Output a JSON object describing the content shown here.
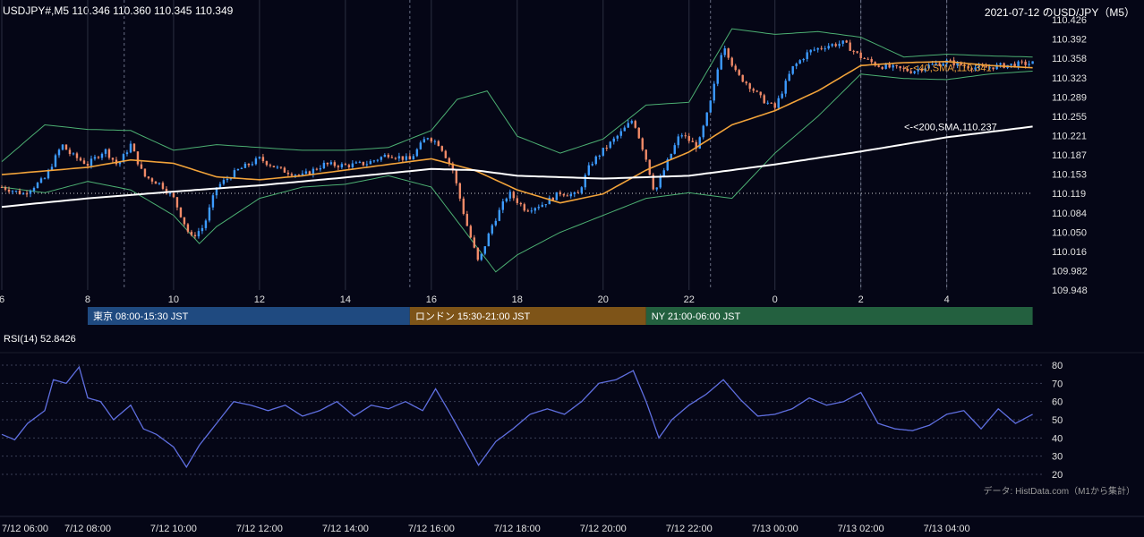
{
  "header": {
    "left": "USDJPY#,M5 110.346 110.360 110.345 110.349",
    "right": "2021-07-12 のUSD/JPY（M5）"
  },
  "rsi_label": "RSI(14) 52.8426",
  "source_note": "データ: HistData.com（M1から集計）",
  "colors": {
    "background": "#050616",
    "bull": "#3d9bff",
    "bear": "#f08a68",
    "sma40": "#f2a33a",
    "sma200": "#ffffff",
    "bollinger": "#4caf72",
    "rsi": "#5f6fe0",
    "grid": "#2b2f40",
    "tokyo": "#1f4a80",
    "london": "#7e5418",
    "ny": "#23603f"
  },
  "chart_data": [
    {
      "type": "candlestick",
      "symbol": "USDJPY#",
      "timeframe": "M5",
      "ohlc_last": {
        "open": 110.346,
        "high": 110.36,
        "low": 110.345,
        "close": 110.349
      },
      "ylim": [
        109.948,
        110.426
      ],
      "yticks": [
        "110.426",
        "110.392",
        "110.358",
        "110.323",
        "110.289",
        "110.255",
        "110.221",
        "110.187",
        "110.153",
        "110.119",
        "110.084",
        "110.050",
        "110.016",
        "109.982",
        "109.948"
      ],
      "xticks": [
        "6",
        "8",
        "10",
        "12",
        "14",
        "16",
        "18",
        "20",
        "22",
        "0",
        "2",
        "4"
      ],
      "xtick_hours": [
        6,
        8,
        10,
        12,
        14,
        16,
        18,
        20,
        22,
        24,
        26,
        28
      ],
      "xlim_hours": [
        6,
        30.3
      ],
      "reference_line": 110.119,
      "key_points": [
        {
          "t": 6.0,
          "p": 110.13
        },
        {
          "t": 6.5,
          "p": 110.118
        },
        {
          "t": 7.0,
          "p": 110.145
        },
        {
          "t": 7.4,
          "p": 110.205
        },
        {
          "t": 7.6,
          "p": 110.188
        },
        {
          "t": 8.0,
          "p": 110.17
        },
        {
          "t": 8.4,
          "p": 110.196
        },
        {
          "t": 8.7,
          "p": 110.168
        },
        {
          "t": 9.0,
          "p": 110.205
        },
        {
          "t": 9.3,
          "p": 110.15
        },
        {
          "t": 9.7,
          "p": 110.135
        },
        {
          "t": 10.0,
          "p": 110.11
        },
        {
          "t": 10.4,
          "p": 110.04
        },
        {
          "t": 10.7,
          "p": 110.06
        },
        {
          "t": 11.0,
          "p": 110.13
        },
        {
          "t": 11.5,
          "p": 110.16
        },
        {
          "t": 12.0,
          "p": 110.18
        },
        {
          "t": 12.5,
          "p": 110.16
        },
        {
          "t": 13.0,
          "p": 110.15
        },
        {
          "t": 13.5,
          "p": 110.17
        },
        {
          "t": 14.0,
          "p": 110.168
        },
        {
          "t": 14.5,
          "p": 110.172
        },
        {
          "t": 15.0,
          "p": 110.188
        },
        {
          "t": 15.5,
          "p": 110.178
        },
        {
          "t": 15.9,
          "p": 110.22
        },
        {
          "t": 16.2,
          "p": 110.205
        },
        {
          "t": 16.5,
          "p": 110.16
        },
        {
          "t": 16.8,
          "p": 110.07
        },
        {
          "t": 17.1,
          "p": 109.995
        },
        {
          "t": 17.4,
          "p": 110.06
        },
        {
          "t": 17.8,
          "p": 110.12
        },
        {
          "t": 18.2,
          "p": 110.09
        },
        {
          "t": 18.6,
          "p": 110.1
        },
        {
          "t": 19.0,
          "p": 110.12
        },
        {
          "t": 19.4,
          "p": 110.115
        },
        {
          "t": 19.7,
          "p": 110.17
        },
        {
          "t": 20.0,
          "p": 110.195
        },
        {
          "t": 20.4,
          "p": 110.225
        },
        {
          "t": 20.7,
          "p": 110.25
        },
        {
          "t": 21.0,
          "p": 110.18
        },
        {
          "t": 21.2,
          "p": 110.12
        },
        {
          "t": 21.5,
          "p": 110.175
        },
        {
          "t": 21.8,
          "p": 110.225
        },
        {
          "t": 22.2,
          "p": 110.2
        },
        {
          "t": 22.5,
          "p": 110.28
        },
        {
          "t": 22.8,
          "p": 110.385
        },
        {
          "t": 23.1,
          "p": 110.33
        },
        {
          "t": 23.4,
          "p": 110.31
        },
        {
          "t": 23.7,
          "p": 110.285
        },
        {
          "t": 24.0,
          "p": 110.27
        },
        {
          "t": 24.4,
          "p": 110.34
        },
        {
          "t": 24.8,
          "p": 110.37
        },
        {
          "t": 25.2,
          "p": 110.38
        },
        {
          "t": 25.6,
          "p": 110.385
        },
        {
          "t": 26.0,
          "p": 110.36
        },
        {
          "t": 26.4,
          "p": 110.345
        },
        {
          "t": 26.8,
          "p": 110.34
        },
        {
          "t": 27.2,
          "p": 110.335
        },
        {
          "t": 27.6,
          "p": 110.345
        },
        {
          "t": 28.0,
          "p": 110.352
        },
        {
          "t": 28.4,
          "p": 110.345
        },
        {
          "t": 28.8,
          "p": 110.34
        },
        {
          "t": 29.2,
          "p": 110.344
        },
        {
          "t": 29.6,
          "p": 110.347
        },
        {
          "t": 30.0,
          "p": 110.349
        }
      ],
      "sma": [
        {
          "name": "SMA(40)",
          "value_label": "<-<40,SMA,110.341",
          "last": 110.341,
          "points": [
            {
              "t": 6,
              "p": 110.152
            },
            {
              "t": 8,
              "p": 110.165
            },
            {
              "t": 9,
              "p": 110.178
            },
            {
              "t": 10,
              "p": 110.172
            },
            {
              "t": 11,
              "p": 110.148
            },
            {
              "t": 12,
              "p": 110.143
            },
            {
              "t": 13,
              "p": 110.15
            },
            {
              "t": 14,
              "p": 110.16
            },
            {
              "t": 15,
              "p": 110.17
            },
            {
              "t": 16,
              "p": 110.18
            },
            {
              "t": 17,
              "p": 110.16
            },
            {
              "t": 18,
              "p": 110.125
            },
            {
              "t": 19,
              "p": 110.102
            },
            {
              "t": 20,
              "p": 110.118
            },
            {
              "t": 21,
              "p": 110.16
            },
            {
              "t": 22,
              "p": 110.192
            },
            {
              "t": 23,
              "p": 110.24
            },
            {
              "t": 24,
              "p": 110.265
            },
            {
              "t": 25,
              "p": 110.3
            },
            {
              "t": 26,
              "p": 110.345
            },
            {
              "t": 27,
              "p": 110.35
            },
            {
              "t": 28,
              "p": 110.352
            },
            {
              "t": 29,
              "p": 110.345
            },
            {
              "t": 30,
              "p": 110.341
            }
          ]
        },
        {
          "name": "SMA(200)",
          "value_label": "<-<200,SMA,110.237",
          "last": 110.237,
          "points": [
            {
              "t": 6,
              "p": 110.095
            },
            {
              "t": 8,
              "p": 110.11
            },
            {
              "t": 10,
              "p": 110.122
            },
            {
              "t": 12,
              "p": 110.133
            },
            {
              "t": 14,
              "p": 110.147
            },
            {
              "t": 16,
              "p": 110.162
            },
            {
              "t": 17,
              "p": 110.16
            },
            {
              "t": 18,
              "p": 110.15
            },
            {
              "t": 20,
              "p": 110.145
            },
            {
              "t": 22,
              "p": 110.15
            },
            {
              "t": 24,
              "p": 110.17
            },
            {
              "t": 26,
              "p": 110.193
            },
            {
              "t": 28,
              "p": 110.218
            },
            {
              "t": 30,
              "p": 110.237
            }
          ]
        }
      ],
      "bollinger_bands": {
        "upper": [
          {
            "t": 6,
            "p": 110.175
          },
          {
            "t": 7,
            "p": 110.24
          },
          {
            "t": 8,
            "p": 110.232
          },
          {
            "t": 9,
            "p": 110.23
          },
          {
            "t": 10,
            "p": 110.195
          },
          {
            "t": 11,
            "p": 110.205
          },
          {
            "t": 12,
            "p": 110.2
          },
          {
            "t": 13,
            "p": 110.195
          },
          {
            "t": 14,
            "p": 110.195
          },
          {
            "t": 15,
            "p": 110.2
          },
          {
            "t": 16,
            "p": 110.23
          },
          {
            "t": 16.6,
            "p": 110.285
          },
          {
            "t": 17.3,
            "p": 110.3
          },
          {
            "t": 18,
            "p": 110.22
          },
          {
            "t": 19,
            "p": 110.19
          },
          {
            "t": 20,
            "p": 110.215
          },
          {
            "t": 21,
            "p": 110.275
          },
          {
            "t": 22,
            "p": 110.28
          },
          {
            "t": 23,
            "p": 110.41
          },
          {
            "t": 24,
            "p": 110.4
          },
          {
            "t": 25,
            "p": 110.405
          },
          {
            "t": 26,
            "p": 110.395
          },
          {
            "t": 27,
            "p": 110.36
          },
          {
            "t": 28,
            "p": 110.365
          },
          {
            "t": 29,
            "p": 110.362
          },
          {
            "t": 30,
            "p": 110.36
          }
        ],
        "lower": [
          {
            "t": 6,
            "p": 110.13
          },
          {
            "t": 7,
            "p": 110.12
          },
          {
            "t": 8,
            "p": 110.14
          },
          {
            "t": 9,
            "p": 110.125
          },
          {
            "t": 10,
            "p": 110.08
          },
          {
            "t": 10.6,
            "p": 110.03
          },
          {
            "t": 11,
            "p": 110.06
          },
          {
            "t": 12,
            "p": 110.11
          },
          {
            "t": 13,
            "p": 110.13
          },
          {
            "t": 14,
            "p": 110.135
          },
          {
            "t": 15,
            "p": 110.15
          },
          {
            "t": 16,
            "p": 110.13
          },
          {
            "t": 17,
            "p": 110.03
          },
          {
            "t": 17.5,
            "p": 109.98
          },
          {
            "t": 18,
            "p": 110.01
          },
          {
            "t": 19,
            "p": 110.05
          },
          {
            "t": 20,
            "p": 110.08
          },
          {
            "t": 21,
            "p": 110.11
          },
          {
            "t": 22,
            "p": 110.12
          },
          {
            "t": 23,
            "p": 110.11
          },
          {
            "t": 24,
            "p": 110.19
          },
          {
            "t": 25,
            "p": 110.255
          },
          {
            "t": 26,
            "p": 110.33
          },
          {
            "t": 27,
            "p": 110.322
          },
          {
            "t": 28,
            "p": 110.32
          },
          {
            "t": 29,
            "p": 110.33
          },
          {
            "t": 30,
            "p": 110.335
          }
        ]
      },
      "sessions": [
        {
          "label": "東京 08:00-15:30 JST",
          "start": 8.0,
          "end": 15.5,
          "color": "#1f4a80"
        },
        {
          "label": "ロンドン 15:30-21:00 JST",
          "start": 15.5,
          "end": 21.0,
          "color": "#7e5418"
        },
        {
          "label": "NY 21:00-06:00 JST",
          "start": 21.0,
          "end": 30.0,
          "color": "#23603f"
        }
      ],
      "session_markers_hours": [
        8.85,
        15.5,
        22.5,
        26.0,
        28.0
      ]
    },
    {
      "type": "line",
      "name": "RSI(14)",
      "last": 52.8426,
      "ylim": [
        20,
        80
      ],
      "yticks": [
        "80",
        "70",
        "60",
        "50",
        "40",
        "30",
        "20"
      ],
      "xticks": [
        "7/12 06:00",
        "7/12 08:00",
        "7/12 10:00",
        "7/12 12:00",
        "7/12 14:00",
        "7/12 16:00",
        "7/12 18:00",
        "7/12 20:00",
        "7/12 22:00",
        "7/13 00:00",
        "7/13 02:00",
        "7/13 04:00"
      ],
      "x_hours": [
        6,
        8,
        10,
        12,
        14,
        16,
        18,
        20,
        22,
        24,
        26,
        28
      ],
      "points": [
        {
          "t": 6.0,
          "v": 42
        },
        {
          "t": 6.3,
          "v": 39
        },
        {
          "t": 6.6,
          "v": 48
        },
        {
          "t": 7.0,
          "v": 55
        },
        {
          "t": 7.2,
          "v": 72
        },
        {
          "t": 7.5,
          "v": 70
        },
        {
          "t": 7.8,
          "v": 79
        },
        {
          "t": 8.0,
          "v": 62
        },
        {
          "t": 8.3,
          "v": 60
        },
        {
          "t": 8.6,
          "v": 50
        },
        {
          "t": 9.0,
          "v": 58
        },
        {
          "t": 9.3,
          "v": 45
        },
        {
          "t": 9.6,
          "v": 42
        },
        {
          "t": 10.0,
          "v": 35
        },
        {
          "t": 10.3,
          "v": 24
        },
        {
          "t": 10.6,
          "v": 36
        },
        {
          "t": 11.0,
          "v": 48
        },
        {
          "t": 11.4,
          "v": 60
        },
        {
          "t": 11.8,
          "v": 58
        },
        {
          "t": 12.2,
          "v": 55
        },
        {
          "t": 12.6,
          "v": 58
        },
        {
          "t": 13.0,
          "v": 52
        },
        {
          "t": 13.4,
          "v": 55
        },
        {
          "t": 13.8,
          "v": 60
        },
        {
          "t": 14.2,
          "v": 52
        },
        {
          "t": 14.6,
          "v": 58
        },
        {
          "t": 15.0,
          "v": 56
        },
        {
          "t": 15.4,
          "v": 60
        },
        {
          "t": 15.8,
          "v": 55
        },
        {
          "t": 16.1,
          "v": 67
        },
        {
          "t": 16.4,
          "v": 55
        },
        {
          "t": 16.8,
          "v": 38
        },
        {
          "t": 17.1,
          "v": 25
        },
        {
          "t": 17.5,
          "v": 38
        },
        {
          "t": 17.9,
          "v": 45
        },
        {
          "t": 18.3,
          "v": 53
        },
        {
          "t": 18.7,
          "v": 56
        },
        {
          "t": 19.1,
          "v": 53
        },
        {
          "t": 19.5,
          "v": 60
        },
        {
          "t": 19.9,
          "v": 70
        },
        {
          "t": 20.3,
          "v": 72
        },
        {
          "t": 20.7,
          "v": 77
        },
        {
          "t": 21.0,
          "v": 60
        },
        {
          "t": 21.3,
          "v": 40
        },
        {
          "t": 21.6,
          "v": 50
        },
        {
          "t": 22.0,
          "v": 58
        },
        {
          "t": 22.4,
          "v": 64
        },
        {
          "t": 22.8,
          "v": 72
        },
        {
          "t": 23.2,
          "v": 61
        },
        {
          "t": 23.6,
          "v": 52
        },
        {
          "t": 24.0,
          "v": 53
        },
        {
          "t": 24.4,
          "v": 56
        },
        {
          "t": 24.8,
          "v": 62
        },
        {
          "t": 25.2,
          "v": 58
        },
        {
          "t": 25.6,
          "v": 60
        },
        {
          "t": 26.0,
          "v": 65
        },
        {
          "t": 26.4,
          "v": 48
        },
        {
          "t": 26.8,
          "v": 45
        },
        {
          "t": 27.2,
          "v": 44
        },
        {
          "t": 27.6,
          "v": 47
        },
        {
          "t": 28.0,
          "v": 53
        },
        {
          "t": 28.4,
          "v": 55
        },
        {
          "t": 28.8,
          "v": 45
        },
        {
          "t": 29.2,
          "v": 56
        },
        {
          "t": 29.6,
          "v": 48
        },
        {
          "t": 30.0,
          "v": 53
        }
      ]
    }
  ]
}
